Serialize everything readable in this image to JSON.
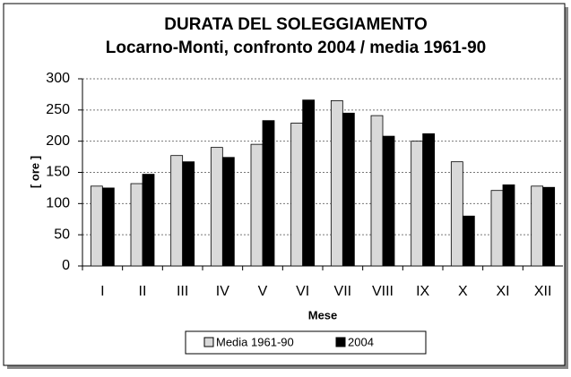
{
  "chart_data": {
    "type": "bar",
    "title": "DURATA DEL SOLEGGIAMENTO",
    "subtitle": "Locarno-Monti, confronto 2004 / media 1961-90",
    "y_label": "[ ore ]",
    "x_label": "Mese",
    "categories": [
      "I",
      "II",
      "III",
      "IV",
      "V",
      "VI",
      "VII",
      "VIII",
      "IX",
      "X",
      "XI",
      "XII"
    ],
    "series": [
      {
        "name": "Media 1961-90",
        "color": "#d9d9d9",
        "values": [
          128,
          132,
          177,
          190,
          195,
          229,
          265,
          241,
          200,
          167,
          121,
          128
        ]
      },
      {
        "name": "2004",
        "color": "#000000",
        "values": [
          125,
          147,
          167,
          174,
          233,
          266,
          245,
          208,
          212,
          80,
          130,
          126
        ]
      }
    ],
    "ylim": [
      0,
      300
    ],
    "yticks": [
      0,
      50,
      100,
      150,
      200,
      250,
      300
    ],
    "grid": true,
    "legend": "bottom"
  }
}
